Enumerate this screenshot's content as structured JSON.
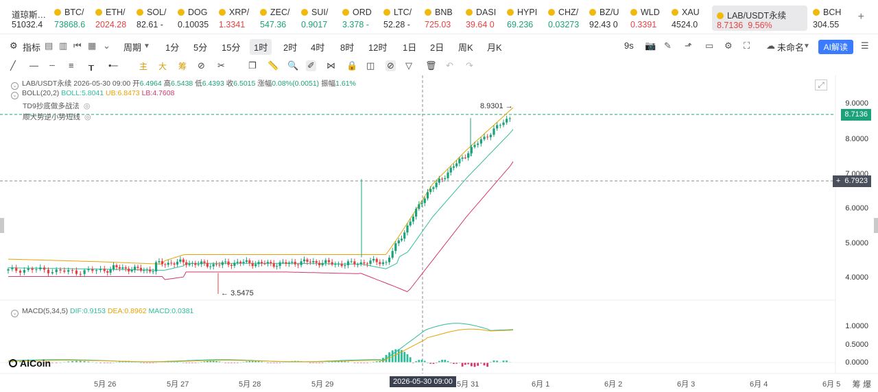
{
  "ticker": {
    "first": {
      "name": "道琼斯…",
      "price": "51032.4"
    },
    "items": [
      {
        "name": "BTC/",
        "price": "73868.6",
        "color": "up"
      },
      {
        "name": "ETH/",
        "price": "2024.28",
        "color": "dn"
      },
      {
        "name": "SOL/",
        "price": "82.61 -",
        "color": "nt"
      },
      {
        "name": "DOG",
        "price": "0.10035",
        "color": "nt"
      },
      {
        "name": "XRP/",
        "price": "1.3341",
        "color": "dn"
      },
      {
        "name": "ZEC/",
        "price": "547.36",
        "color": "up"
      },
      {
        "name": "SUI/",
        "price": "0.9017",
        "color": "up"
      },
      {
        "name": "ORD",
        "price": "3.378 -",
        "color": "up"
      },
      {
        "name": "LTC/",
        "price": "52.28 -",
        "color": "nt"
      },
      {
        "name": "BNB",
        "price": "725.03",
        "color": "dn"
      },
      {
        "name": "DASI",
        "price": "39.64 0",
        "color": "dn"
      },
      {
        "name": "HYPI",
        "price": "69.236",
        "color": "up"
      },
      {
        "name": "CHZ/",
        "price": "0.03273",
        "color": "up"
      },
      {
        "name": "BZ/U",
        "price": "92.43 0",
        "color": "nt"
      },
      {
        "name": "WLD",
        "price": "0.3391",
        "color": "dn"
      },
      {
        "name": "XAU",
        "price": "4524.0",
        "color": "nt"
      }
    ],
    "active": {
      "name": "LAB/USDT永续",
      "price": "8.7136",
      "change": "9.56%"
    },
    "last": {
      "name": "BCH",
      "price": "304.55"
    },
    "add": "+"
  },
  "toolbar": {
    "indicator": "指标",
    "period": "周期",
    "intervals": [
      "1分",
      "5分",
      "15分",
      "1时",
      "2时",
      "4时",
      "8时",
      "12时",
      "1日",
      "2日",
      "周K",
      "月K"
    ],
    "selected_interval": "1时",
    "refresh": "9s",
    "template": "未命名",
    "ai": "AI解读"
  },
  "drawtools": {
    "main": "主",
    "big": "大",
    "crab": "筹"
  },
  "legend": {
    "pair": "LAB/USDT永续",
    "date": "2026-05-30 09:00",
    "open_label": "开",
    "open": "6.4964",
    "high_label": "高",
    "high": "6.5438",
    "low_label": "低",
    "low": "6.4393",
    "close_label": "收",
    "close": "6.5015",
    "chg_label": "涨幅",
    "chg": "0.08%(0.0051)",
    "amp_label": "振幅",
    "amp": "1.61%",
    "boll": "BOLL(20,2)",
    "boll_mid": "BOLL:5.8041",
    "boll_ub": "UB:6.8473",
    "boll_lb": "LB:4.7608",
    "td9": "TD9抄底做多战法",
    "trend": "顺大势逆小势短线",
    "macd": "MACD(5,34,5)",
    "dif": "DIF:0.9153",
    "dea": "DEA:0.8962",
    "macd_val": "MACD:0.0381"
  },
  "markers": {
    "high": "8.9301",
    "low": "3.5475"
  },
  "axis": {
    "price_ticks": [
      "9.0000",
      "8.0000",
      "7.0000",
      "6.0000",
      "5.0000",
      "4.0000"
    ],
    "macd_ticks": [
      "1.0000",
      "0.5000",
      "0.0000"
    ],
    "current_price": "8.7136",
    "cursor_price": "6.7923",
    "dates": [
      "5月 26",
      "5月 27",
      "5月 28",
      "5月 29",
      "5月 31",
      "6月 1",
      "6月 2",
      "6月 3",
      "6月 4",
      "6月 5"
    ],
    "cursor_date": "2026-05-30 09:00",
    "corner": "筹 爆"
  },
  "brand": "AiCoin",
  "colors": {
    "up": "#1ba27a",
    "down": "#e84142",
    "boll_mid": "#e8a300",
    "ub": "#e8a300",
    "lb": "#d4376a",
    "mid": "#2dbd9b",
    "accent": "#3a7bff"
  },
  "chart_data": {
    "type": "candlestick",
    "title": "LAB/USDT永续 1时",
    "price_range": [
      3.2,
      9.3
    ],
    "x": [
      "5月 26",
      "5月 27",
      "5月 28",
      "5月 29",
      "5月 30",
      "5月 31"
    ],
    "close_approx": [
      4.25,
      4.35,
      4.5,
      4.4,
      6.2,
      8.71
    ],
    "boll_mid_approx": [
      4.2,
      4.3,
      4.45,
      4.5,
      5.8,
      8.1
    ],
    "boll_ub_approx": [
      4.6,
      4.45,
      4.6,
      4.65,
      6.85,
      8.9
    ],
    "boll_lb_approx": [
      4.05,
      4.0,
      4.15,
      4.2,
      4.76,
      7.35
    ],
    "macd": {
      "dif": 0.9153,
      "dea": 0.8962,
      "macd": 0.0381,
      "range": [
        -0.2,
        1.2
      ]
    }
  }
}
